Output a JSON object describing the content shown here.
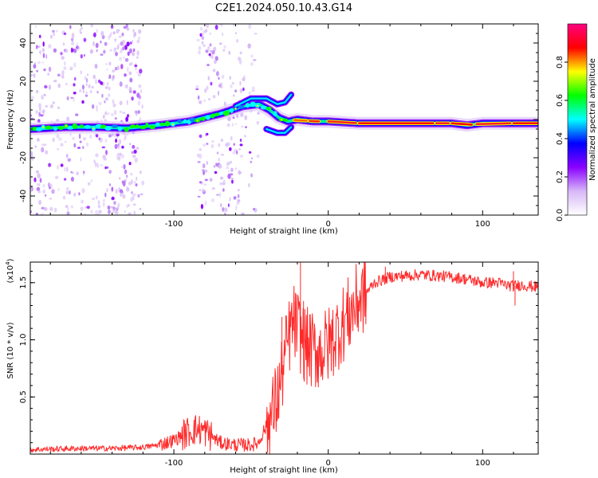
{
  "title": "C2E1.2024.050.10.43.G14",
  "chart_data": [
    {
      "type": "heatmap",
      "xlabel": "Height of straight line (km)",
      "ylabel": "Frequency (Hz)",
      "xlim": [
        -193,
        136
      ],
      "ylim": [
        -50,
        50
      ],
      "xticks": [
        -100,
        0,
        100
      ],
      "yticks": [
        -40,
        -20,
        0,
        20,
        40
      ],
      "colorbar": {
        "label": "Normalized spectral amplitude",
        "range": [
          0,
          1
        ],
        "ticks": [
          0.0,
          0.2,
          0.4,
          0.6,
          0.8
        ],
        "colors": [
          "#ffffff",
          "#d7b7f7",
          "#8a00ff",
          "#0000ff",
          "#00ffff",
          "#00ff00",
          "#ffff00",
          "#ff0000",
          "#ff0080"
        ]
      },
      "ridge": {
        "x": [
          -193,
          -170,
          -150,
          -130,
          -110,
          -90,
          -70,
          -55,
          -45,
          -38,
          -32,
          -26,
          -20,
          -10,
          0,
          20,
          60,
          80,
          90,
          100,
          136
        ],
        "y": [
          -5,
          -4,
          -4,
          -4.5,
          -3,
          -1,
          3,
          7,
          8,
          5,
          1,
          -1,
          0,
          -1,
          -1,
          -2,
          -2,
          -2,
          -3,
          -2,
          -2
        ]
      },
      "upper_branch": {
        "x": [
          -60,
          -50,
          -40,
          -33,
          -28,
          -24
        ],
        "y": [
          7,
          11,
          11,
          8,
          9,
          13
        ]
      },
      "lower_branch": {
        "x": [
          -40,
          -33,
          -28,
          -24
        ],
        "y": [
          -5,
          -7,
          -7,
          -4
        ]
      }
    },
    {
      "type": "line",
      "xlabel": "Height of straight line (km)",
      "ylabel": "SNR (10 * v/v)",
      "y_multiplier": "(x10",
      "y_multiplier_exp": "4",
      "y_multiplier_close": ")",
      "xlim": [
        -193,
        136
      ],
      "ylim": [
        0,
        1.68
      ],
      "xticks": [
        -100,
        0,
        100
      ],
      "yticks": [
        0.5,
        1.0,
        1.5
      ],
      "series": [
        {
          "color": "#ff2a2a",
          "x": [
            -193,
            -160,
            -140,
            -120,
            -110,
            -100,
            -95,
            -90,
            -85,
            -80,
            -75,
            -70,
            -60,
            -50,
            -45,
            -42,
            -38,
            -35,
            -32,
            -28,
            -25,
            -22,
            -18,
            -15,
            -10,
            -5,
            0,
            5,
            10,
            15,
            20,
            25,
            30,
            40,
            50,
            60,
            70,
            80,
            90,
            100,
            110,
            115,
            120,
            125,
            130,
            136
          ],
          "y": [
            0.04,
            0.05,
            0.05,
            0.06,
            0.08,
            0.12,
            0.16,
            0.2,
            0.22,
            0.2,
            0.15,
            0.1,
            0.08,
            0.08,
            0.1,
            0.2,
            0.28,
            0.4,
            0.55,
            0.85,
            1.05,
            1.15,
            1.05,
            0.95,
            0.9,
            0.9,
            0.95,
            1.05,
            1.15,
            1.25,
            1.35,
            1.42,
            1.5,
            1.55,
            1.56,
            1.57,
            1.56,
            1.55,
            1.53,
            1.5,
            1.5,
            1.48,
            1.47,
            1.48,
            1.47,
            1.46
          ]
        }
      ],
      "spikes": [
        {
          "x": -18,
          "y": 1.68
        },
        {
          "x": -16,
          "y": 1.34
        },
        {
          "x": -22,
          "y": 1.33
        },
        {
          "x": -30,
          "y": 1.2
        },
        {
          "x": -12,
          "y": 1.22
        },
        {
          "x": 37,
          "y": 1.64
        },
        {
          "x": 121,
          "y": 1.3
        },
        {
          "x": 120,
          "y": 1.6
        }
      ]
    }
  ]
}
